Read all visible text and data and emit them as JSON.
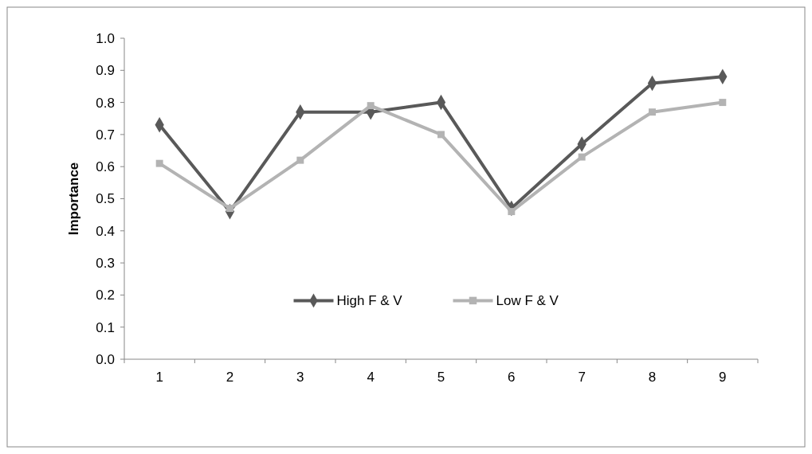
{
  "chart_data": {
    "type": "line",
    "ylabel": "Importance",
    "categories": [
      "1",
      "2",
      "3",
      "4",
      "5",
      "6",
      "7",
      "8",
      "9"
    ],
    "series": [
      {
        "name": "High F & V",
        "color": "#595959",
        "marker": "diamond",
        "values": [
          0.73,
          0.46,
          0.77,
          0.77,
          0.8,
          0.47,
          0.67,
          0.86,
          0.88
        ]
      },
      {
        "name": "Low F & V",
        "color": "#b3b3b3",
        "marker": "square",
        "values": [
          0.61,
          0.47,
          0.62,
          0.79,
          0.7,
          0.46,
          0.63,
          0.77,
          0.8
        ]
      }
    ],
    "ylim": [
      0,
      1
    ],
    "yticks": [
      {
        "value": 0,
        "label": "0.0"
      },
      {
        "value": 0.1,
        "label": "0.1"
      },
      {
        "value": 0.2,
        "label": "0.2"
      },
      {
        "value": 0.3,
        "label": "0.3"
      },
      {
        "value": 0.4,
        "label": "0.4"
      },
      {
        "value": 0.5,
        "label": "0.5"
      },
      {
        "value": 0.6,
        "label": "0.6"
      },
      {
        "value": 0.7,
        "label": "0.7"
      },
      {
        "value": 0.8,
        "label": "0.8"
      },
      {
        "value": 0.9,
        "label": "0.9"
      },
      {
        "value": 1,
        "label": "1.0"
      }
    ],
    "grid": false,
    "legend": "bottom",
    "line_style": "solid"
  }
}
